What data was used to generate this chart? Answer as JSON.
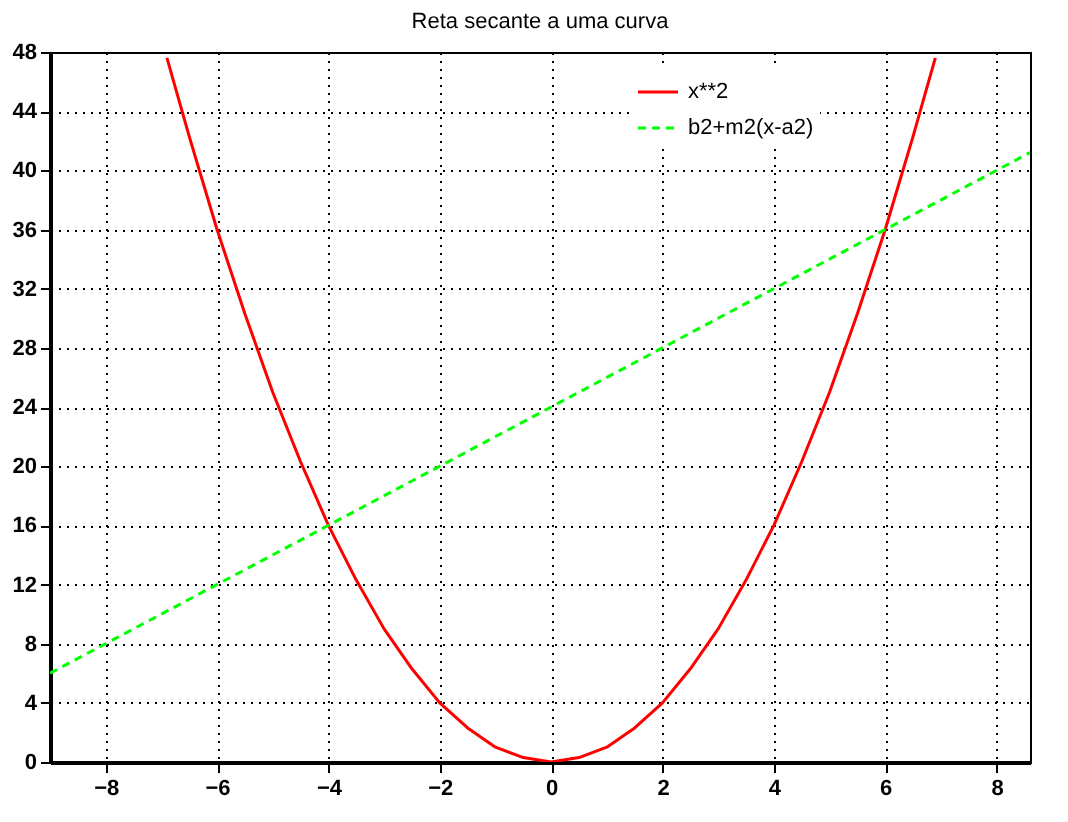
{
  "chart_data": {
    "type": "line",
    "title": "Reta secante a uma curva",
    "series": [
      {
        "name": "x**2",
        "color": "#ff0000",
        "line_style": "solid",
        "x": [
          -6.9,
          -6.5,
          -6,
          -5.5,
          -5,
          -4.5,
          -4,
          -3.5,
          -3,
          -2.5,
          -2,
          -1.5,
          -1,
          -0.5,
          0,
          0.5,
          1,
          1.5,
          2,
          2.5,
          3,
          3.5,
          4,
          4.5,
          5,
          5.5,
          6,
          6.5,
          6.9
        ],
        "values": [
          47.6,
          42.3,
          36,
          30.3,
          25,
          20.3,
          16,
          12.3,
          9,
          6.3,
          4,
          2.3,
          1,
          0.3,
          0,
          0.3,
          1,
          2.3,
          4,
          6.3,
          9,
          12.3,
          16,
          20.3,
          25,
          30.3,
          36,
          42.3,
          47.6
        ]
      },
      {
        "name": "b2+m2(x-a2)",
        "color": "#00ff00",
        "line_style": "dashed",
        "x": [
          -9,
          8.6
        ],
        "values": [
          6,
          41.2
        ]
      }
    ],
    "xlim": [
      -9,
      8.6
    ],
    "xticks": [
      -8,
      -6,
      -4,
      -2,
      0,
      2,
      4,
      6,
      8
    ],
    "ylim": [
      0,
      48
    ],
    "yticks": [
      0,
      4,
      8,
      12,
      16,
      20,
      24,
      28,
      32,
      36,
      40,
      44,
      48
    ],
    "grid": true,
    "legend": "top right",
    "marker": "none"
  }
}
